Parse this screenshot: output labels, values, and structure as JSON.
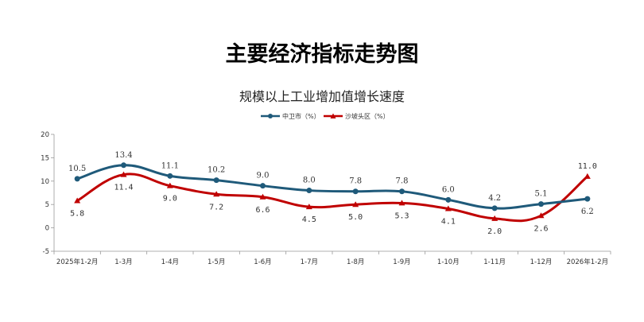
{
  "title": "主要经济指标走势图",
  "chart_data": {
    "type": "line",
    "title": "规模以上工业增加值增长速度",
    "categories": [
      "2025年1-2月",
      "1-3月",
      "1-4月",
      "1-5月",
      "1-6月",
      "1-7月",
      "1-8月",
      "1-9月",
      "1-10月",
      "1-11月",
      "1-12月",
      "2026年1-2月"
    ],
    "series": [
      {
        "name": "中卫市（%）",
        "color": "#1f5a7a",
        "marker": "circle",
        "values": [
          10.5,
          13.4,
          11.1,
          10.2,
          9.0,
          8.0,
          7.8,
          7.8,
          6.0,
          4.2,
          5.1,
          6.2
        ],
        "labels": [
          "10.5",
          "13.4",
          "11.1",
          "10.2",
          "9.0",
          "8.0",
          "7.8",
          "7.8",
          "6.0",
          "4.2",
          "5.1",
          "6.2"
        ]
      },
      {
        "name": "沙坡头区（%）",
        "color": "#c00000",
        "marker": "triangle",
        "values": [
          5.8,
          11.4,
          9.0,
          7.2,
          6.6,
          4.5,
          5.0,
          5.3,
          4.1,
          2.0,
          2.6,
          11.0
        ],
        "labels": [
          "5.8",
          "11.4",
          "9.0",
          "7.2",
          "6.6",
          "4.5",
          "5.0",
          "5.3",
          "4.1",
          "2.0",
          "2.6",
          "11.0"
        ]
      }
    ],
    "ylim": [
      -5,
      20
    ],
    "yticks": [
      -5,
      0,
      5,
      10,
      15,
      20
    ],
    "ytick_labels": [
      "-5",
      "0",
      "5",
      "10",
      "15",
      "20"
    ],
    "negative_tick_color": "#ff0000",
    "grid": false,
    "legend_position": "top-center",
    "smooth": true
  }
}
